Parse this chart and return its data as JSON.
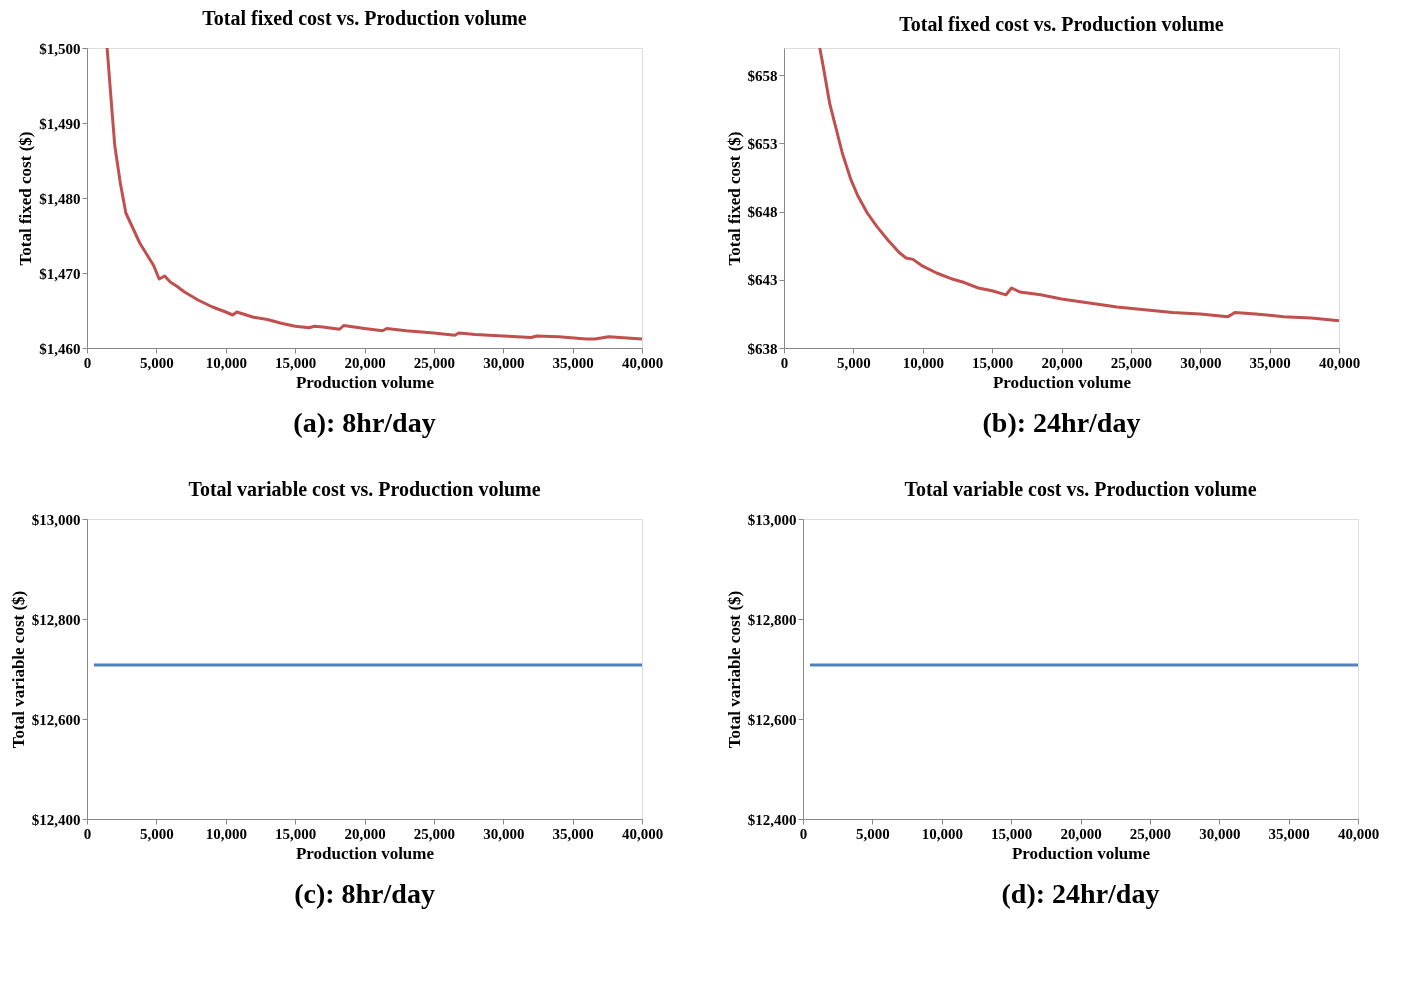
{
  "chart_data": [
    {
      "type": "line",
      "title": "Total fixed cost  vs. Production volume",
      "xlabel": "Production  volume",
      "ylabel": "Total fixed cost ($)",
      "annotations": [
        "(a): 8hr/day"
      ],
      "x": [
        1450,
        1700,
        2000,
        2400,
        2800,
        3300,
        3800,
        4300,
        4800,
        5200,
        5600,
        6000,
        6500,
        7000,
        8000,
        9000,
        10000,
        10500,
        10800,
        12000,
        13000,
        14000,
        15000,
        16000,
        16400,
        17000,
        18200,
        18500,
        20000,
        21300,
        21600,
        23000,
        25000,
        26500,
        26800,
        28000,
        30000,
        32000,
        32400,
        34000,
        36000,
        36600,
        37600,
        40000
      ],
      "series": [
        {
          "color": "#c0504d",
          "values": [
            1500,
            1494,
            1487,
            1482,
            1478,
            1476,
            1474,
            1472.5,
            1471,
            1469.2,
            1469.6,
            1468.8,
            1468.2,
            1467.5,
            1466.4,
            1465.5,
            1464.8,
            1464.4,
            1464.8,
            1464.1,
            1463.8,
            1463.3,
            1462.9,
            1462.7,
            1462.9,
            1462.8,
            1462.5,
            1463.0,
            1462.6,
            1462.3,
            1462.6,
            1462.3,
            1462.0,
            1461.7,
            1462.0,
            1461.8,
            1461.6,
            1461.4,
            1461.6,
            1461.5,
            1461.2,
            1461.2,
            1461.5,
            1461.2
          ]
        }
      ],
      "xlim": [
        0,
        40000
      ],
      "ylim": [
        1460,
        1500
      ],
      "xticks": [
        0,
        {
          "value": 5000,
          "label": "5,000"
        },
        {
          "value": 10000,
          "label": "10,000"
        },
        {
          "value": 15000,
          "label": "15,000"
        },
        {
          "value": 20000,
          "label": "20,000"
        },
        {
          "value": 25000,
          "label": "25,000"
        },
        {
          "value": 30000,
          "label": "30,000"
        },
        {
          "value": 35000,
          "label": "35,000"
        },
        {
          "value": 40000,
          "label": "40,000"
        }
      ],
      "yticks": [
        {
          "value": 1460,
          "label": "$1,460"
        },
        {
          "value": 1470,
          "label": "$1,470"
        },
        {
          "value": 1480,
          "label": "$1,480"
        },
        {
          "value": 1490,
          "label": "$1,490"
        },
        {
          "value": 1500,
          "label": "$1,500"
        }
      ]
    },
    {
      "type": "line",
      "title": "Total fixed cost vs. Production volume",
      "xlabel": "Production  volume",
      "ylabel": "Total fixed cost ($)",
      "annotations": [
        "(b): 24hr/day"
      ],
      "x": [
        2580,
        2800,
        3300,
        3700,
        4200,
        4800,
        5300,
        6000,
        6700,
        7500,
        8300,
        8800,
        9300,
        10000,
        11000,
        12000,
        13000,
        14000,
        15000,
        16000,
        16400,
        17000,
        18500,
        20000,
        22000,
        24000,
        26000,
        28000,
        30000,
        32000,
        32500,
        34000,
        36000,
        38000,
        40000
      ],
      "series": [
        {
          "color": "#c0504d",
          "values": [
            660,
            658.8,
            655.9,
            654.3,
            652.3,
            650.4,
            649.2,
            647.9,
            646.9,
            645.9,
            645.0,
            644.6,
            644.5,
            644.0,
            643.5,
            643.1,
            642.8,
            642.4,
            642.2,
            641.9,
            642.4,
            642.1,
            641.9,
            641.6,
            641.3,
            641.0,
            640.8,
            640.6,
            640.5,
            640.3,
            640.6,
            640.5,
            640.3,
            640.2,
            640.0
          ]
        }
      ],
      "xlim": [
        0,
        40000
      ],
      "ylim": [
        638,
        660
      ],
      "xticks": [
        0,
        {
          "value": 5000,
          "label": "5,000"
        },
        {
          "value": 10000,
          "label": "10,000"
        },
        {
          "value": 15000,
          "label": "15,000"
        },
        {
          "value": 20000,
          "label": "20,000"
        },
        {
          "value": 25000,
          "label": "25,000"
        },
        {
          "value": 30000,
          "label": "30,000"
        },
        {
          "value": 35000,
          "label": "35,000"
        },
        {
          "value": 40000,
          "label": "40,000"
        }
      ],
      "yticks": [
        {
          "value": 638,
          "label": "$638"
        },
        {
          "value": 643,
          "label": "$643"
        },
        {
          "value": 648,
          "label": "$648"
        },
        {
          "value": 653,
          "label": "$653"
        },
        {
          "value": 658,
          "label": "$658"
        }
      ]
    },
    {
      "type": "line",
      "title": "Total variable cost vs. Production volume",
      "xlabel": "Production  volume",
      "ylabel": "Total variable cost ($)",
      "annotations": [
        "(c): 8hr/day"
      ],
      "x": [
        500,
        10000,
        20000,
        30000,
        40000
      ],
      "series": [
        {
          "color": "#4f81bd",
          "values": [
            12708,
            12708,
            12708,
            12708,
            12708
          ]
        }
      ],
      "xlim": [
        0,
        40000
      ],
      "ylim": [
        12400,
        13000
      ],
      "xticks": [
        0,
        {
          "value": 5000,
          "label": "5,000"
        },
        {
          "value": 10000,
          "label": "10,000"
        },
        {
          "value": 15000,
          "label": "15,000"
        },
        {
          "value": 20000,
          "label": "20,000"
        },
        {
          "value": 25000,
          "label": "25,000"
        },
        {
          "value": 30000,
          "label": "30,000"
        },
        {
          "value": 35000,
          "label": "35,000"
        },
        {
          "value": 40000,
          "label": "40,000"
        }
      ],
      "yticks": [
        {
          "value": 12400,
          "label": "$12,400"
        },
        {
          "value": 12600,
          "label": "$12,600"
        },
        {
          "value": 12800,
          "label": "$12,800"
        },
        {
          "value": 13000,
          "label": "$13,000"
        }
      ]
    },
    {
      "type": "line",
      "title": "Total variable cost vs. Production volume",
      "xlabel": "Production  volume",
      "ylabel": "Total variable cost ($)",
      "annotations": [
        "(d): 24hr/day"
      ],
      "x": [
        500,
        10000,
        20000,
        30000,
        40000
      ],
      "series": [
        {
          "color": "#4f81bd",
          "values": [
            12708,
            12708,
            12708,
            12708,
            12708
          ]
        }
      ],
      "xlim": [
        0,
        40000
      ],
      "ylim": [
        12400,
        13000
      ],
      "xticks": [
        0,
        {
          "value": 5000,
          "label": "5,000"
        },
        {
          "value": 10000,
          "label": "10,000"
        },
        {
          "value": 15000,
          "label": "15,000"
        },
        {
          "value": 20000,
          "label": "20,000"
        },
        {
          "value": 25000,
          "label": "25,000"
        },
        {
          "value": 30000,
          "label": "30,000"
        },
        {
          "value": 35000,
          "label": "35,000"
        },
        {
          "value": 40000,
          "label": "40,000"
        }
      ],
      "yticks": [
        {
          "value": 12400,
          "label": "$12,400"
        },
        {
          "value": 12600,
          "label": "$12,600"
        },
        {
          "value": 12800,
          "label": "$12,800"
        },
        {
          "value": 13000,
          "label": "$13,000"
        }
      ]
    }
  ]
}
